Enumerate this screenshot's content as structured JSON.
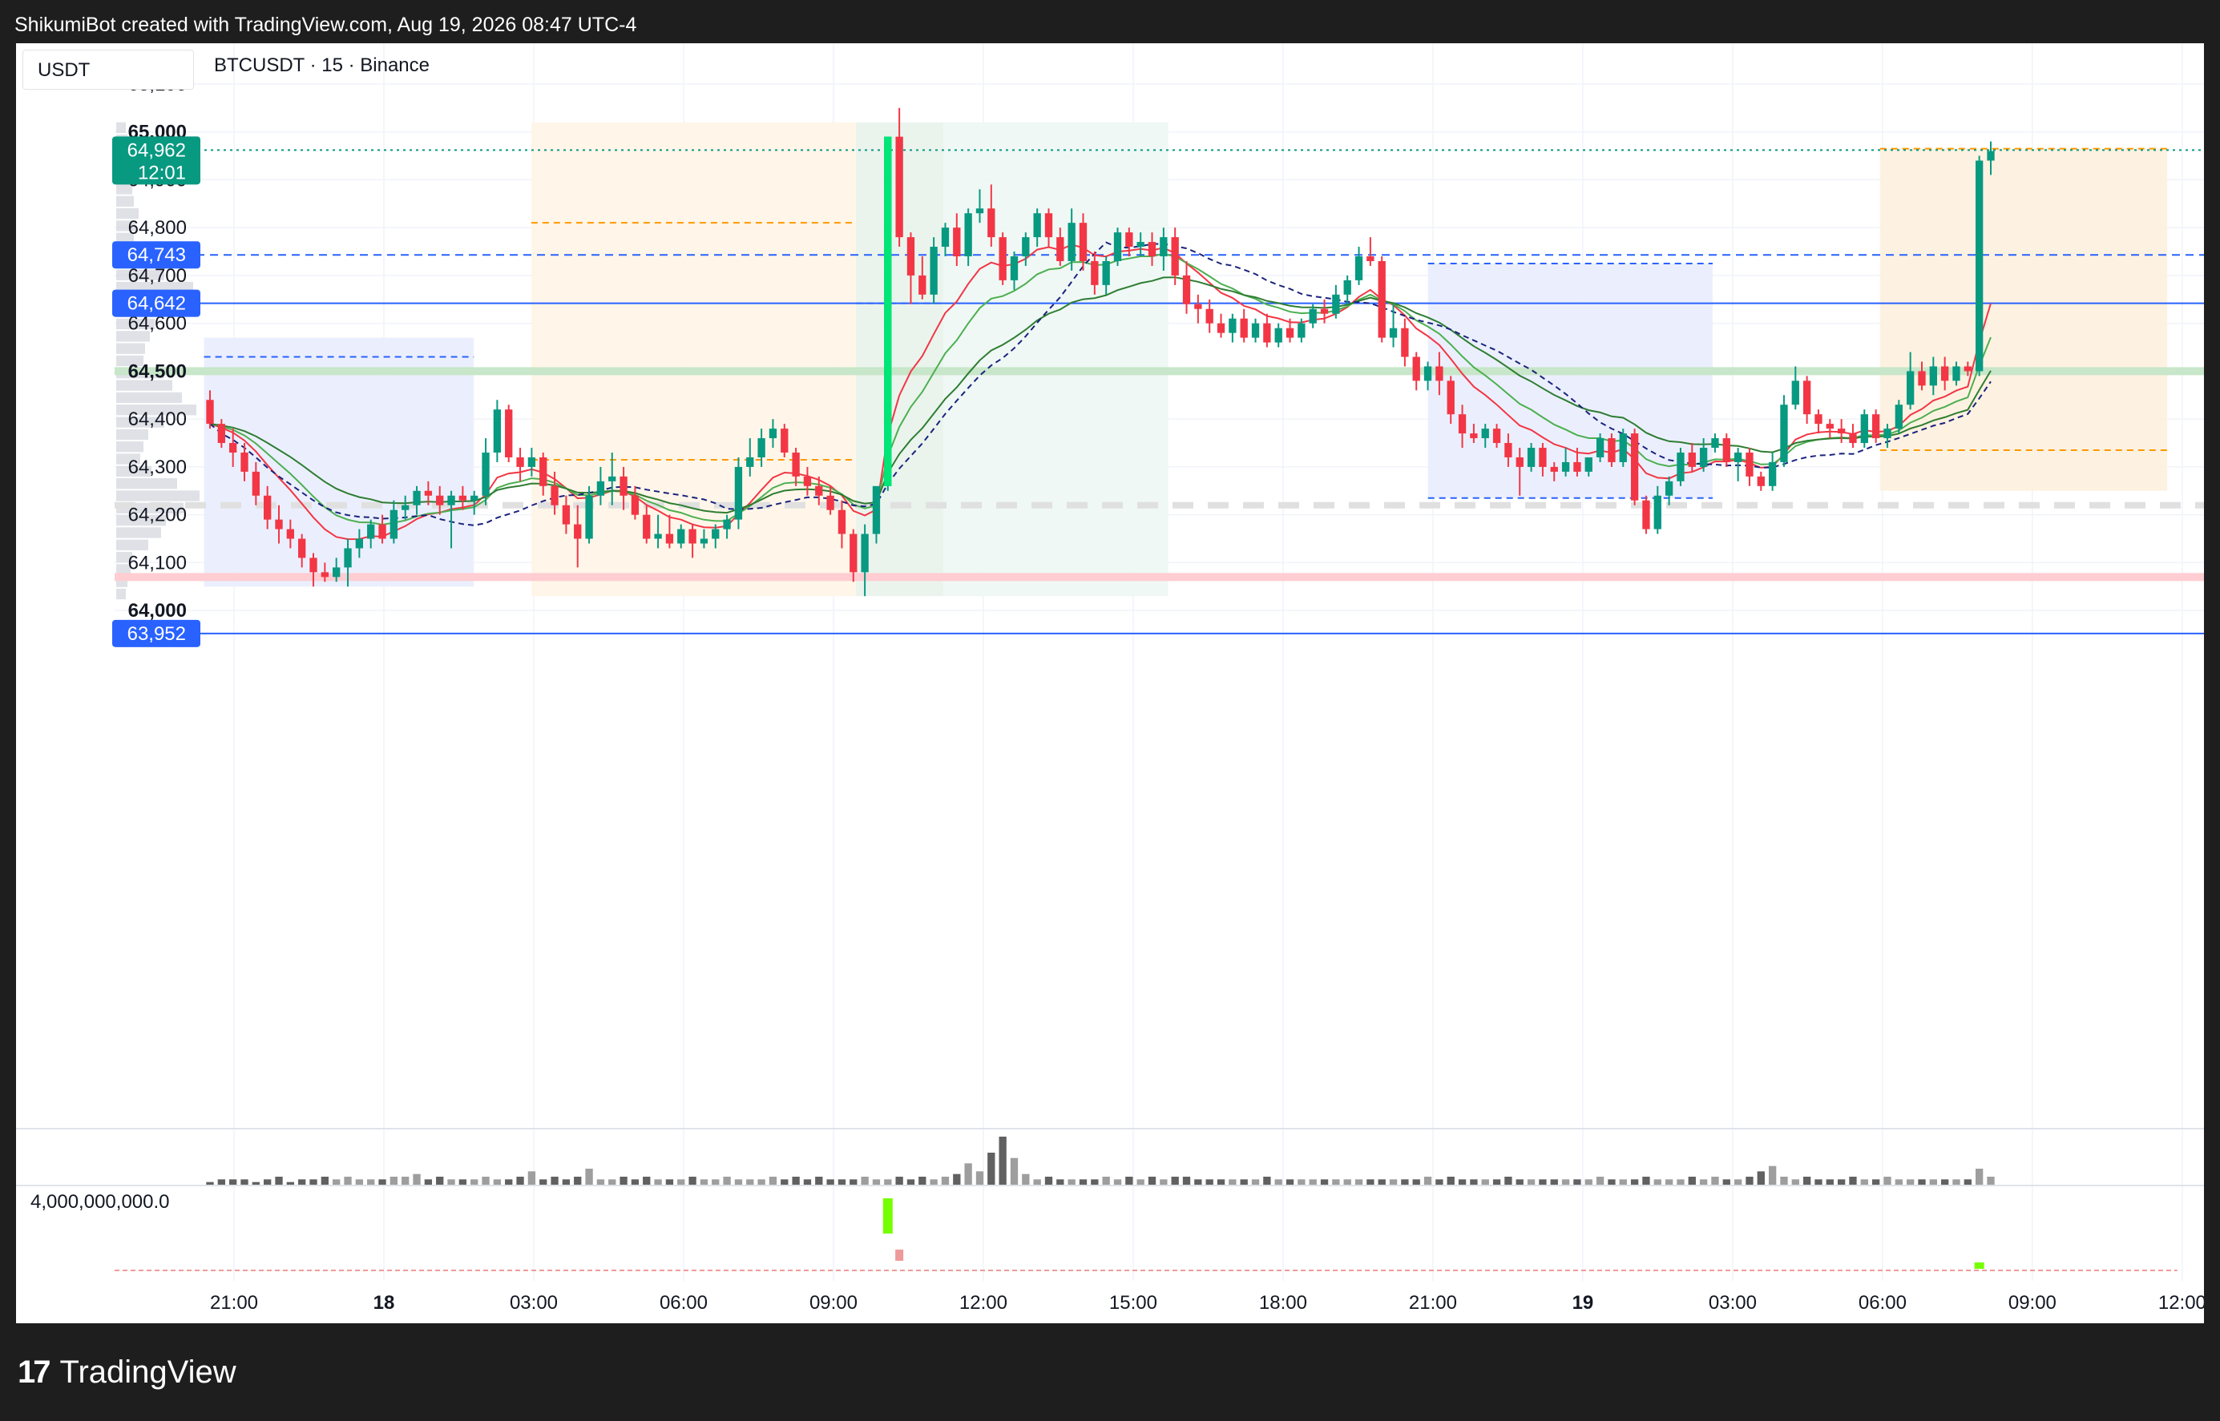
{
  "header": {
    "text": "ShikumiBot created with TradingView.com, Aug 19, 2026 08:47 UTC-4"
  },
  "toolbar": {
    "currency": "USDT",
    "symbol": "BTCUSDT · 15 · Binance"
  },
  "footer": {
    "logo_mark": "17",
    "logo_text": "TradingView"
  },
  "colors": {
    "up": "#089981",
    "down": "#f23645",
    "blue": "#2962ff",
    "green_line": "#4caf50",
    "red_line": "#f23645",
    "orange": "#ff9800",
    "grid": "#f0f3fa",
    "volume_up": "#9e9e9e"
  },
  "chart_data": {
    "type": "candlestick",
    "symbol": "BTCUSDT",
    "interval": "15",
    "exchange": "Binance",
    "ylim": [
      63930,
      65140
    ],
    "y_ticks": [
      {
        "label": "65,100",
        "value": 65100,
        "bold": false
      },
      {
        "label": "65,000",
        "value": 65000,
        "bold": true
      },
      {
        "label": "64,900",
        "value": 64900,
        "bold": false
      },
      {
        "label": "64,800",
        "value": 64800,
        "bold": false
      },
      {
        "label": "64,700",
        "value": 64700,
        "bold": false
      },
      {
        "label": "64,600",
        "value": 64600,
        "bold": false
      },
      {
        "label": "64,500",
        "value": 64500,
        "bold": true
      },
      {
        "label": "64,400",
        "value": 64400,
        "bold": false
      },
      {
        "label": "64,300",
        "value": 64300,
        "bold": false
      },
      {
        "label": "64,200",
        "value": 64200,
        "bold": false
      },
      {
        "label": "64,100",
        "value": 64100,
        "bold": false
      },
      {
        "label": "64,000",
        "value": 64000,
        "bold": true
      }
    ],
    "x_ticks": [
      {
        "label": "21:00",
        "hour": -3,
        "bold": false
      },
      {
        "label": "18",
        "hour": 0,
        "bold": true
      },
      {
        "label": "03:00",
        "hour": 3,
        "bold": false
      },
      {
        "label": "06:00",
        "hour": 6,
        "bold": false
      },
      {
        "label": "09:00",
        "hour": 9,
        "bold": false
      },
      {
        "label": "12:00",
        "hour": 12,
        "bold": false
      },
      {
        "label": "15:00",
        "hour": 15,
        "bold": false
      },
      {
        "label": "18:00",
        "hour": 18,
        "bold": false
      },
      {
        "label": "21:00",
        "hour": 21,
        "bold": false
      },
      {
        "label": "19",
        "hour": 24,
        "bold": true
      },
      {
        "label": "03:00",
        "hour": 27,
        "bold": false
      },
      {
        "label": "06:00",
        "hour": 30,
        "bold": false
      },
      {
        "label": "09:00",
        "hour": 33,
        "bold": false
      },
      {
        "label": "12:00",
        "hour": 36,
        "bold": false
      }
    ],
    "price_badges": [
      {
        "label": "64,962",
        "sublabel": "12:01",
        "value": 64962,
        "color": "#089981",
        "line": "dotted"
      },
      {
        "label": "64,743",
        "value": 64743,
        "color": "#2962ff",
        "line": "dashed"
      },
      {
        "label": "64,642",
        "value": 64642,
        "color": "#2962ff",
        "line": "solid"
      },
      {
        "label": "63,952",
        "value": 63952,
        "color": "#2962ff",
        "line": "solid"
      }
    ],
    "horizontal_levels": [
      {
        "value": 64500,
        "color": "#c8e6c9"
      },
      {
        "value": 64070,
        "color": "#ffcdd2"
      },
      {
        "value": 64220,
        "color": "#e0e0e0"
      }
    ],
    "zones": [
      {
        "x0": -3.6,
        "x1": 1.8,
        "y0": 64570,
        "y1": 64050,
        "color": "#e8ecfd",
        "mid": 64530,
        "mid_color": "#2962ff"
      },
      {
        "x0": 2.95,
        "x1": 9.45,
        "y0": 65020,
        "y1": 64030,
        "color": "#fff4e5",
        "mid": 64810,
        "mid_color": "#ff9800",
        "low": 64315
      },
      {
        "x0": 9.45,
        "x1": 11.2,
        "y0": 65020,
        "y1": 64030,
        "color": "#e6f2ea",
        "mid": 64642,
        "mid_color": "#2962ff"
      },
      {
        "x0": 11.2,
        "x1": 15.7,
        "y0": 65020,
        "y1": 64030,
        "color": "#ecf7f3"
      },
      {
        "x0": 20.9,
        "x1": 26.6,
        "y0": 64725,
        "y1": 64235,
        "color": "#e8ecfd",
        "mid": 64725,
        "mid_color": "#2962ff",
        "low": 64235
      },
      {
        "x0": 29.95,
        "x1": 35.7,
        "y0": 64965,
        "y1": 64250,
        "color": "#fdf0dc",
        "mid": 64965,
        "mid_color": "#ff9800",
        "low": 64335
      }
    ],
    "candles": [
      [
        64440,
        64460,
        64390,
        64380
      ],
      [
        64390,
        64400,
        64350,
        64340
      ],
      [
        64350,
        64380,
        64330,
        64300
      ],
      [
        64330,
        64350,
        64290,
        64270
      ],
      [
        64290,
        64310,
        64240,
        64220
      ],
      [
        64240,
        64260,
        64190,
        64170
      ],
      [
        64190,
        64220,
        64170,
        64140
      ],
      [
        64170,
        64190,
        64150,
        64130
      ],
      [
        64150,
        64160,
        64110,
        64090
      ],
      [
        64110,
        64120,
        64080,
        64050
      ],
      [
        64080,
        64100,
        64070,
        64060
      ],
      [
        64070,
        64110,
        64090,
        64060
      ],
      [
        64090,
        64150,
        64130,
        64050
      ],
      [
        64130,
        64170,
        64150,
        64110
      ],
      [
        64150,
        64190,
        64180,
        64130
      ],
      [
        64180,
        64200,
        64150,
        64140
      ],
      [
        64150,
        64230,
        64210,
        64140
      ],
      [
        64210,
        64240,
        64220,
        64190
      ],
      [
        64220,
        64260,
        64250,
        64200
      ],
      [
        64250,
        64270,
        64240,
        64220
      ],
      [
        64240,
        64260,
        64220,
        64200
      ],
      [
        64220,
        64250,
        64240,
        64130
      ],
      [
        64240,
        64260,
        64230,
        64210
      ],
      [
        64230,
        64250,
        64240,
        64200
      ],
      [
        64240,
        64360,
        64330,
        64220
      ],
      [
        64330,
        64440,
        64420,
        64310
      ],
      [
        64420,
        64430,
        64320,
        64310
      ],
      [
        64320,
        64340,
        64300,
        64270
      ],
      [
        64300,
        64340,
        64320,
        64280
      ],
      [
        64320,
        64330,
        64260,
        64240
      ],
      [
        64260,
        64290,
        64220,
        64200
      ],
      [
        64220,
        64240,
        64180,
        64160
      ],
      [
        64180,
        64220,
        64150,
        64090
      ],
      [
        64150,
        64260,
        64240,
        64140
      ],
      [
        64240,
        64300,
        64270,
        64220
      ],
      [
        64270,
        64330,
        64280,
        64220
      ],
      [
        64280,
        64300,
        64240,
        64210
      ],
      [
        64240,
        64260,
        64200,
        64190
      ],
      [
        64200,
        64220,
        64150,
        64140
      ],
      [
        64150,
        64200,
        64160,
        64130
      ],
      [
        64160,
        64200,
        64140,
        64130
      ],
      [
        64140,
        64180,
        64170,
        64130
      ],
      [
        64170,
        64180,
        64140,
        64110
      ],
      [
        64140,
        64170,
        64150,
        64130
      ],
      [
        64150,
        64180,
        64170,
        64130
      ],
      [
        64170,
        64200,
        64190,
        64150
      ],
      [
        64190,
        64320,
        64300,
        64170
      ],
      [
        64300,
        64360,
        64320,
        64280
      ],
      [
        64320,
        64380,
        64360,
        64300
      ],
      [
        64360,
        64400,
        64380,
        64340
      ],
      [
        64380,
        64390,
        64330,
        64320
      ],
      [
        64330,
        64340,
        64280,
        64260
      ],
      [
        64280,
        64300,
        64260,
        64240
      ],
      [
        64260,
        64280,
        64240,
        64220
      ],
      [
        64240,
        64260,
        64210,
        64200
      ],
      [
        64210,
        64230,
        64160,
        64130
      ],
      [
        64160,
        64170,
        64080,
        64060
      ],
      [
        64080,
        64180,
        64160,
        64030
      ],
      [
        64160,
        64200,
        64260,
        64140
      ],
      [
        64260,
        64990,
        64990,
        64250
      ],
      [
        64990,
        65050,
        64780,
        64760
      ],
      [
        64780,
        64790,
        64700,
        64640
      ],
      [
        64700,
        64740,
        64660,
        64650
      ],
      [
        64660,
        64780,
        64760,
        64640
      ],
      [
        64760,
        64810,
        64800,
        64740
      ],
      [
        64800,
        64830,
        64740,
        64720
      ],
      [
        64740,
        64840,
        64830,
        64720
      ],
      [
        64830,
        64880,
        64840,
        64810
      ],
      [
        64840,
        64890,
        64780,
        64760
      ],
      [
        64780,
        64790,
        64690,
        64680
      ],
      [
        64690,
        64750,
        64740,
        64670
      ],
      [
        64740,
        64790,
        64780,
        64720
      ],
      [
        64780,
        64840,
        64830,
        64760
      ],
      [
        64830,
        64840,
        64780,
        64760
      ],
      [
        64780,
        64800,
        64730,
        64720
      ],
      [
        64730,
        64840,
        64810,
        64710
      ],
      [
        64810,
        64830,
        64730,
        64710
      ],
      [
        64730,
        64750,
        64680,
        64660
      ],
      [
        64680,
        64740,
        64730,
        64660
      ],
      [
        64730,
        64800,
        64790,
        64720
      ],
      [
        64790,
        64800,
        64760,
        64740
      ],
      [
        64760,
        64790,
        64770,
        64740
      ],
      [
        64770,
        64790,
        64740,
        64720
      ],
      [
        64740,
        64800,
        64780,
        64710
      ],
      [
        64780,
        64800,
        64700,
        64680
      ],
      [
        64700,
        64730,
        64640,
        64620
      ],
      [
        64640,
        64660,
        64630,
        64600
      ],
      [
        64630,
        64650,
        64600,
        64580
      ],
      [
        64600,
        64620,
        64580,
        64570
      ],
      [
        64580,
        64620,
        64610,
        64560
      ],
      [
        64610,
        64630,
        64570,
        64560
      ],
      [
        64570,
        64610,
        64600,
        64560
      ],
      [
        64600,
        64620,
        64560,
        64550
      ],
      [
        64560,
        64600,
        64590,
        64550
      ],
      [
        64590,
        64610,
        64570,
        64560
      ],
      [
        64570,
        64610,
        64600,
        64560
      ],
      [
        64600,
        64640,
        64630,
        64590
      ],
      [
        64630,
        64650,
        64620,
        64600
      ],
      [
        64620,
        64680,
        64660,
        64610
      ],
      [
        64660,
        64700,
        64690,
        64640
      ],
      [
        64690,
        64760,
        64740,
        64680
      ],
      [
        64740,
        64780,
        64730,
        64720
      ],
      [
        64730,
        64740,
        64570,
        64560
      ],
      [
        64570,
        64640,
        64590,
        64550
      ],
      [
        64590,
        64610,
        64530,
        64510
      ],
      [
        64530,
        64540,
        64480,
        64460
      ],
      [
        64480,
        64520,
        64510,
        64460
      ],
      [
        64510,
        64540,
        64480,
        64450
      ],
      [
        64480,
        64490,
        64410,
        64390
      ],
      [
        64410,
        64430,
        64370,
        64340
      ],
      [
        64370,
        64390,
        64360,
        64350
      ],
      [
        64360,
        64390,
        64380,
        64340
      ],
      [
        64380,
        64390,
        64350,
        64340
      ],
      [
        64350,
        64370,
        64320,
        64300
      ],
      [
        64320,
        64340,
        64300,
        64240
      ],
      [
        64300,
        64350,
        64340,
        64290
      ],
      [
        64340,
        64350,
        64300,
        64280
      ],
      [
        64300,
        64310,
        64290,
        64270
      ],
      [
        64290,
        64340,
        64310,
        64280
      ],
      [
        64310,
        64340,
        64290,
        64280
      ],
      [
        64290,
        64310,
        64320,
        64280
      ],
      [
        64320,
        64370,
        64360,
        64310
      ],
      [
        64360,
        64370,
        64310,
        64300
      ],
      [
        64310,
        64380,
        64370,
        64300
      ],
      [
        64370,
        64380,
        64230,
        64220
      ],
      [
        64230,
        64240,
        64170,
        64160
      ],
      [
        64170,
        64260,
        64240,
        64160
      ],
      [
        64240,
        64280,
        64270,
        64220
      ],
      [
        64270,
        64340,
        64330,
        64260
      ],
      [
        64330,
        64350,
        64300,
        64290
      ],
      [
        64300,
        64360,
        64340,
        64290
      ],
      [
        64340,
        64370,
        64360,
        64330
      ],
      [
        64360,
        64370,
        64310,
        64300
      ],
      [
        64310,
        64340,
        64330,
        64270
      ],
      [
        64330,
        64340,
        64280,
        64260
      ],
      [
        64280,
        64290,
        64260,
        64250
      ],
      [
        64260,
        64330,
        64310,
        64250
      ],
      [
        64310,
        64450,
        64430,
        64300
      ],
      [
        64430,
        64510,
        64480,
        64420
      ],
      [
        64480,
        64490,
        64410,
        64390
      ],
      [
        64410,
        64420,
        64390,
        64370
      ],
      [
        64390,
        64400,
        64380,
        64360
      ],
      [
        64380,
        64400,
        64370,
        64350
      ],
      [
        64370,
        64390,
        64350,
        64340
      ],
      [
        64350,
        64420,
        64410,
        64340
      ],
      [
        64410,
        64420,
        64360,
        64350
      ],
      [
        64360,
        64390,
        64380,
        64340
      ],
      [
        64380,
        64440,
        64430,
        64370
      ],
      [
        64430,
        64540,
        64500,
        64420
      ],
      [
        64500,
        64520,
        64470,
        64460
      ],
      [
        64470,
        64530,
        64510,
        64450
      ],
      [
        64510,
        64530,
        64480,
        64460
      ],
      [
        64480,
        64520,
        64510,
        64470
      ],
      [
        64510,
        64520,
        64500,
        64490
      ],
      [
        64500,
        64950,
        64940,
        64490
      ],
      [
        64940,
        64980,
        64960,
        64910
      ]
    ],
    "volume": [
      1,
      2,
      2,
      2,
      1,
      2,
      3,
      1,
      2,
      2,
      3,
      2,
      3,
      2,
      2,
      2,
      3,
      3,
      4,
      2,
      3,
      2,
      2,
      2,
      3,
      2,
      2,
      3,
      5,
      2,
      3,
      2,
      3,
      6,
      2,
      2,
      3,
      2,
      3,
      2,
      2,
      2,
      3,
      2,
      2,
      3,
      2,
      2,
      2,
      3,
      2,
      3,
      2,
      3,
      2,
      2,
      2,
      3,
      2,
      2,
      3,
      2,
      3,
      2,
      3,
      4,
      8,
      5,
      12,
      18,
      10,
      4,
      2,
      3,
      2,
      2,
      2,
      2,
      3,
      2,
      3,
      2,
      3,
      2,
      3,
      3,
      2,
      2,
      2,
      2,
      2,
      2,
      3,
      2,
      2,
      2,
      2,
      2,
      2,
      2,
      2,
      2,
      2,
      2,
      2,
      2,
      3,
      2,
      3,
      2,
      2,
      2,
      2,
      3,
      2,
      2,
      2,
      2,
      2,
      2,
      2,
      3,
      2,
      2,
      2,
      3,
      2,
      2,
      2,
      3,
      2,
      3,
      2,
      2,
      3,
      5,
      7,
      3,
      2,
      3,
      2,
      2,
      2,
      3,
      2,
      2,
      3,
      2,
      2,
      2,
      2,
      2,
      2,
      2,
      6,
      3
    ],
    "lower_indicator": {
      "label": "4,000,000,000.0",
      "spike_index": 59
    }
  }
}
